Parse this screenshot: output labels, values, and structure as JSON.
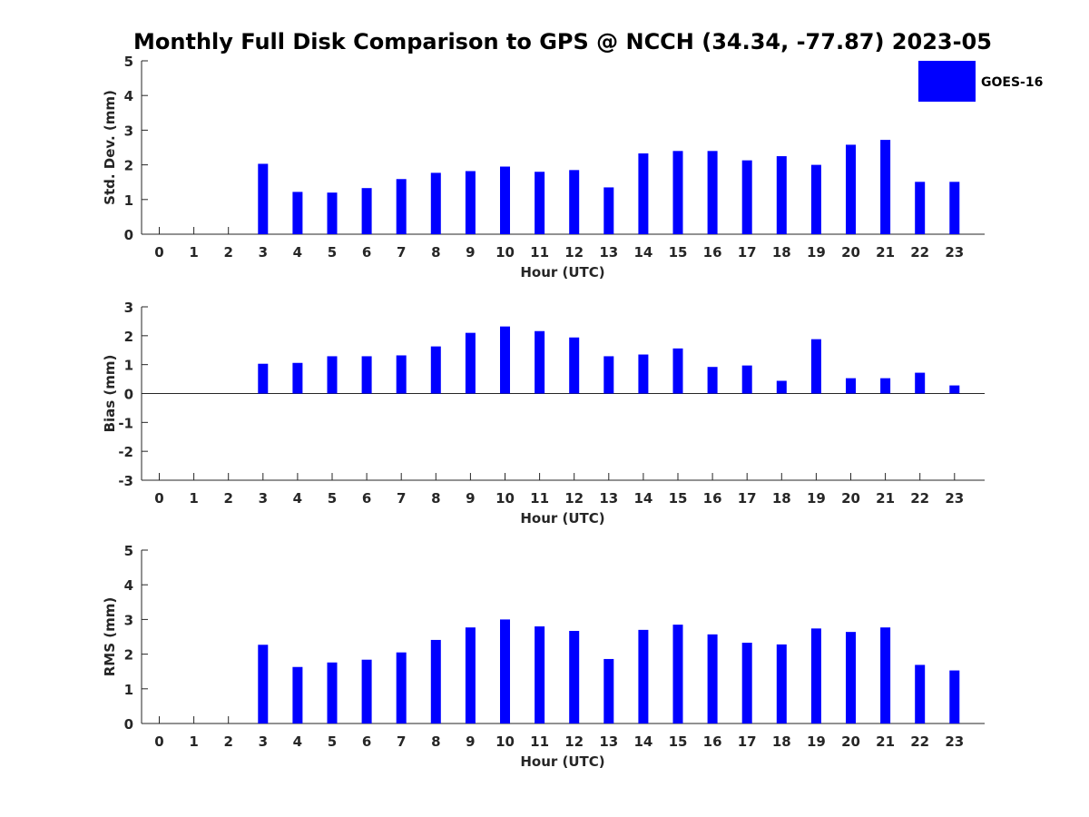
{
  "title": "Monthly Full Disk Comparison to GPS @ NCCH (34.34, -77.87) 2023-05",
  "legend": {
    "label": "GOES-16",
    "color": "#0000ff"
  },
  "chart_data": [
    {
      "type": "bar",
      "name": "std-dev",
      "ylabel": "Std. Dev. (mm)",
      "xlabel": "Hour (UTC)",
      "ylim": [
        0,
        5
      ],
      "yticks": [
        "0",
        "1",
        "2",
        "3",
        "4",
        "5"
      ],
      "categories": [
        "0",
        "1",
        "2",
        "3",
        "4",
        "5",
        "6",
        "7",
        "8",
        "9",
        "10",
        "11",
        "12",
        "13",
        "14",
        "15",
        "16",
        "17",
        "18",
        "19",
        "20",
        "21",
        "22",
        "23"
      ],
      "values": [
        null,
        null,
        null,
        2.03,
        1.22,
        1.2,
        1.33,
        1.59,
        1.77,
        1.82,
        1.95,
        1.8,
        1.85,
        1.35,
        2.33,
        2.4,
        2.4,
        2.13,
        2.25,
        2.0,
        2.58,
        2.72,
        1.51,
        1.51
      ],
      "color": "#0000ff"
    },
    {
      "type": "bar",
      "name": "bias",
      "ylabel": "Bias (mm)",
      "xlabel": "Hour (UTC)",
      "ylim": [
        -3,
        3
      ],
      "yticks": [
        "-3",
        "-2",
        "-1",
        "0",
        "1",
        "2",
        "3"
      ],
      "categories": [
        "0",
        "1",
        "2",
        "3",
        "4",
        "5",
        "6",
        "7",
        "8",
        "9",
        "10",
        "11",
        "12",
        "13",
        "14",
        "15",
        "16",
        "17",
        "18",
        "19",
        "20",
        "21",
        "22",
        "23"
      ],
      "values": [
        null,
        null,
        null,
        1.03,
        1.06,
        1.29,
        1.29,
        1.32,
        1.63,
        2.1,
        2.32,
        2.16,
        1.94,
        1.29,
        1.35,
        1.56,
        0.92,
        0.97,
        0.44,
        1.88,
        0.53,
        0.53,
        0.72,
        0.28
      ],
      "color": "#0000ff"
    },
    {
      "type": "bar",
      "name": "rms",
      "ylabel": "RMS (mm)",
      "xlabel": "Hour (UTC)",
      "ylim": [
        0,
        5
      ],
      "yticks": [
        "0",
        "1",
        "2",
        "3",
        "4",
        "5"
      ],
      "categories": [
        "0",
        "1",
        "2",
        "3",
        "4",
        "5",
        "6",
        "7",
        "8",
        "9",
        "10",
        "11",
        "12",
        "13",
        "14",
        "15",
        "16",
        "17",
        "18",
        "19",
        "20",
        "21",
        "22",
        "23"
      ],
      "values": [
        null,
        null,
        null,
        2.27,
        1.63,
        1.76,
        1.84,
        2.05,
        2.41,
        2.77,
        3.0,
        2.8,
        2.67,
        1.86,
        2.7,
        2.85,
        2.57,
        2.33,
        2.28,
        2.74,
        2.64,
        2.77,
        1.69,
        1.53
      ],
      "color": "#0000ff"
    }
  ]
}
